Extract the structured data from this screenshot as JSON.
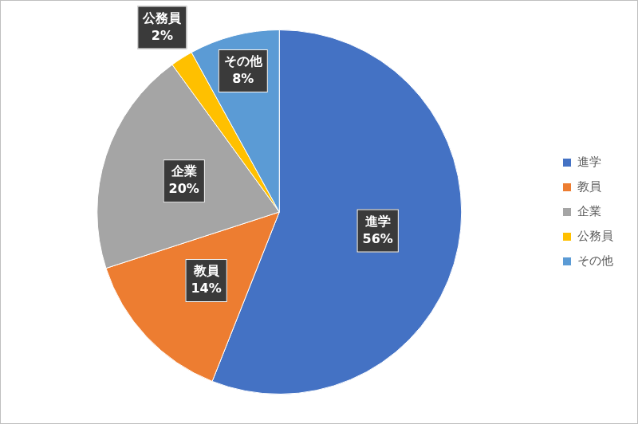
{
  "chart_data": {
    "type": "pie",
    "categories": [
      "進学",
      "教員",
      "企業",
      "公務員",
      "その他"
    ],
    "values": [
      56,
      14,
      20,
      2,
      8
    ],
    "value_labels": [
      "56%",
      "14%",
      "20%",
      "2%",
      "8%"
    ],
    "colors": [
      "#4472c4",
      "#ed7d31",
      "#a5a5a5",
      "#ffc000",
      "#5b9bd5"
    ],
    "legend": "right",
    "data_labels": true
  }
}
